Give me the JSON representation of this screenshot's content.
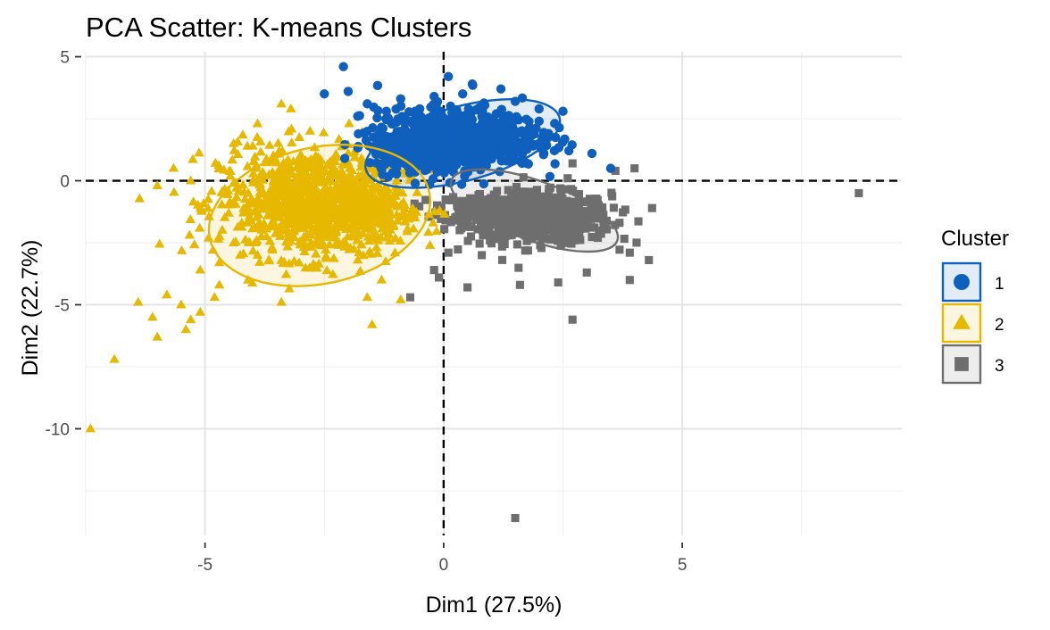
{
  "chart_data": {
    "type": "scatter",
    "title": "PCA Scatter: K-means Clusters",
    "xlabel": "Dim1 (27.5%)",
    "ylabel": "Dim2 (22.7%)",
    "xlim": [
      -7.5,
      9.6
    ],
    "ylim": [
      -14.3,
      5.2
    ],
    "xticks": [
      -5,
      0,
      5
    ],
    "yticks": [
      5,
      0,
      -5,
      -10
    ],
    "xtick_labels": [
      "-5",
      "0",
      "5"
    ],
    "ytick_labels": [
      "5",
      "0",
      "-5",
      "-10"
    ],
    "grid": true,
    "reference_lines": {
      "x": 0,
      "y": 0,
      "style": "dashed"
    },
    "legend": {
      "title": "Cluster",
      "position": "right"
    },
    "series": [
      {
        "name": "1",
        "marker": "circle",
        "color": "#0F5FBD",
        "ellipse": {
          "cx": 0.4,
          "cy": 1.5,
          "rx": 2.1,
          "ry": 1.5,
          "angle_deg": -15
        },
        "points": [
          [
            -2.1,
            4.6
          ],
          [
            -2.5,
            3.5
          ],
          [
            -2.0,
            3.6
          ],
          [
            -1.6,
            3.1
          ],
          [
            -1.2,
            2.8
          ],
          [
            -0.9,
            3.3
          ],
          [
            -0.2,
            3.4
          ],
          [
            0.1,
            4.2
          ],
          [
            0.4,
            3.5
          ],
          [
            0.6,
            3.9
          ],
          [
            1.2,
            3.7
          ],
          [
            1.5,
            3.2
          ],
          [
            2.0,
            2.9
          ],
          [
            2.5,
            2.8
          ],
          [
            2.0,
            2.4
          ],
          [
            2.2,
            1.9
          ],
          [
            2.1,
            1.1
          ],
          [
            3.5,
            0.5
          ],
          [
            -0.5,
            2.9
          ],
          [
            -1.4,
            1.8
          ],
          [
            -1.8,
            2.6
          ],
          [
            -1.0,
            1.7
          ],
          [
            -0.2,
            2.1
          ],
          [
            0.3,
            2.5
          ],
          [
            0.8,
            2.1
          ],
          [
            1.2,
            1.3
          ],
          [
            1.6,
            0.8
          ],
          [
            -0.3,
            0.8
          ],
          [
            0.4,
            1.6
          ],
          [
            -0.7,
            0.5
          ]
        ],
        "dense_regions": [
          {
            "cx": 0.3,
            "cy": 1.7,
            "rx": 1.7,
            "ry": 1.2,
            "count": 700
          },
          {
            "cx": -0.6,
            "cy": 1.1,
            "rx": 1.0,
            "ry": 0.8,
            "count": 180
          }
        ]
      },
      {
        "name": "2",
        "marker": "triangle",
        "color": "#E7B800",
        "ellipse": {
          "cx": -2.6,
          "cy": -1.4,
          "rx": 2.35,
          "ry": 2.75,
          "angle_deg": -12
        },
        "points": [
          [
            -7.4,
            -10.0
          ],
          [
            -6.9,
            -7.2
          ],
          [
            -6.4,
            -4.9
          ],
          [
            -6.1,
            -5.5
          ],
          [
            -6.0,
            -6.3
          ],
          [
            -5.8,
            -4.6
          ],
          [
            -5.5,
            -5.0
          ],
          [
            -5.3,
            -5.6
          ],
          [
            -5.4,
            -6.0
          ],
          [
            -5.1,
            -5.3
          ],
          [
            -4.8,
            -4.7
          ],
          [
            -5.1,
            -3.6
          ],
          [
            -4.7,
            -4.2
          ],
          [
            -4.7,
            -3.3
          ],
          [
            -4.4,
            -2.5
          ],
          [
            -6.0,
            -0.2
          ],
          [
            -5.3,
            0.0
          ],
          [
            -4.4,
            -0.1
          ],
          [
            -3.4,
            -4.9
          ],
          [
            -3.4,
            3.1
          ],
          [
            -3.2,
            2.9
          ],
          [
            -3.9,
            2.3
          ],
          [
            -4.0,
            1.4
          ],
          [
            -4.4,
            1.5
          ],
          [
            -2.8,
            2.0
          ],
          [
            -1.6,
            -4.7
          ],
          [
            -1.5,
            -5.8
          ],
          [
            -1.3,
            -4.0
          ],
          [
            -0.9,
            -4.8
          ],
          [
            -3.9,
            -3.0
          ],
          [
            -1.8,
            -3.2
          ],
          [
            -0.6,
            -1.5
          ],
          [
            -1.2,
            0.6
          ],
          [
            -4.2,
            -1.3
          ]
        ],
        "dense_regions": [
          {
            "cx": -2.8,
            "cy": -0.9,
            "rx": 1.9,
            "ry": 2.2,
            "count": 900
          },
          {
            "cx": -1.7,
            "cy": -1.2,
            "rx": 1.0,
            "ry": 1.3,
            "count": 200
          }
        ]
      },
      {
        "name": "3",
        "marker": "square",
        "color": "#6E6E6E",
        "ellipse": {
          "cx": 1.9,
          "cy": -1.2,
          "rx": 1.85,
          "ry": 1.2,
          "angle_deg": 20
        },
        "points": [
          [
            8.7,
            -0.5
          ],
          [
            1.5,
            -13.6
          ],
          [
            2.7,
            -5.6
          ],
          [
            -0.7,
            -4.7
          ],
          [
            0.5,
            -4.3
          ],
          [
            1.6,
            -4.2
          ],
          [
            2.4,
            -4.1
          ],
          [
            3.9,
            -4.0
          ],
          [
            4.3,
            -3.2
          ],
          [
            4.0,
            0.5
          ],
          [
            3.6,
            0.4
          ],
          [
            2.7,
            0.7
          ],
          [
            -0.1,
            -3.9
          ],
          [
            -0.2,
            -3.6
          ],
          [
            0.1,
            -2.9
          ],
          [
            3.0,
            -3.7
          ],
          [
            3.9,
            -2.9
          ],
          [
            0.8,
            -3.0
          ],
          [
            2.6,
            0.1
          ]
        ],
        "dense_regions": [
          {
            "cx": 2.0,
            "cy": -1.5,
            "rx": 1.5,
            "ry": 1.0,
            "count": 600
          },
          {
            "cx": 0.8,
            "cy": -1.1,
            "rx": 0.9,
            "ry": 0.6,
            "count": 150
          }
        ]
      }
    ]
  }
}
